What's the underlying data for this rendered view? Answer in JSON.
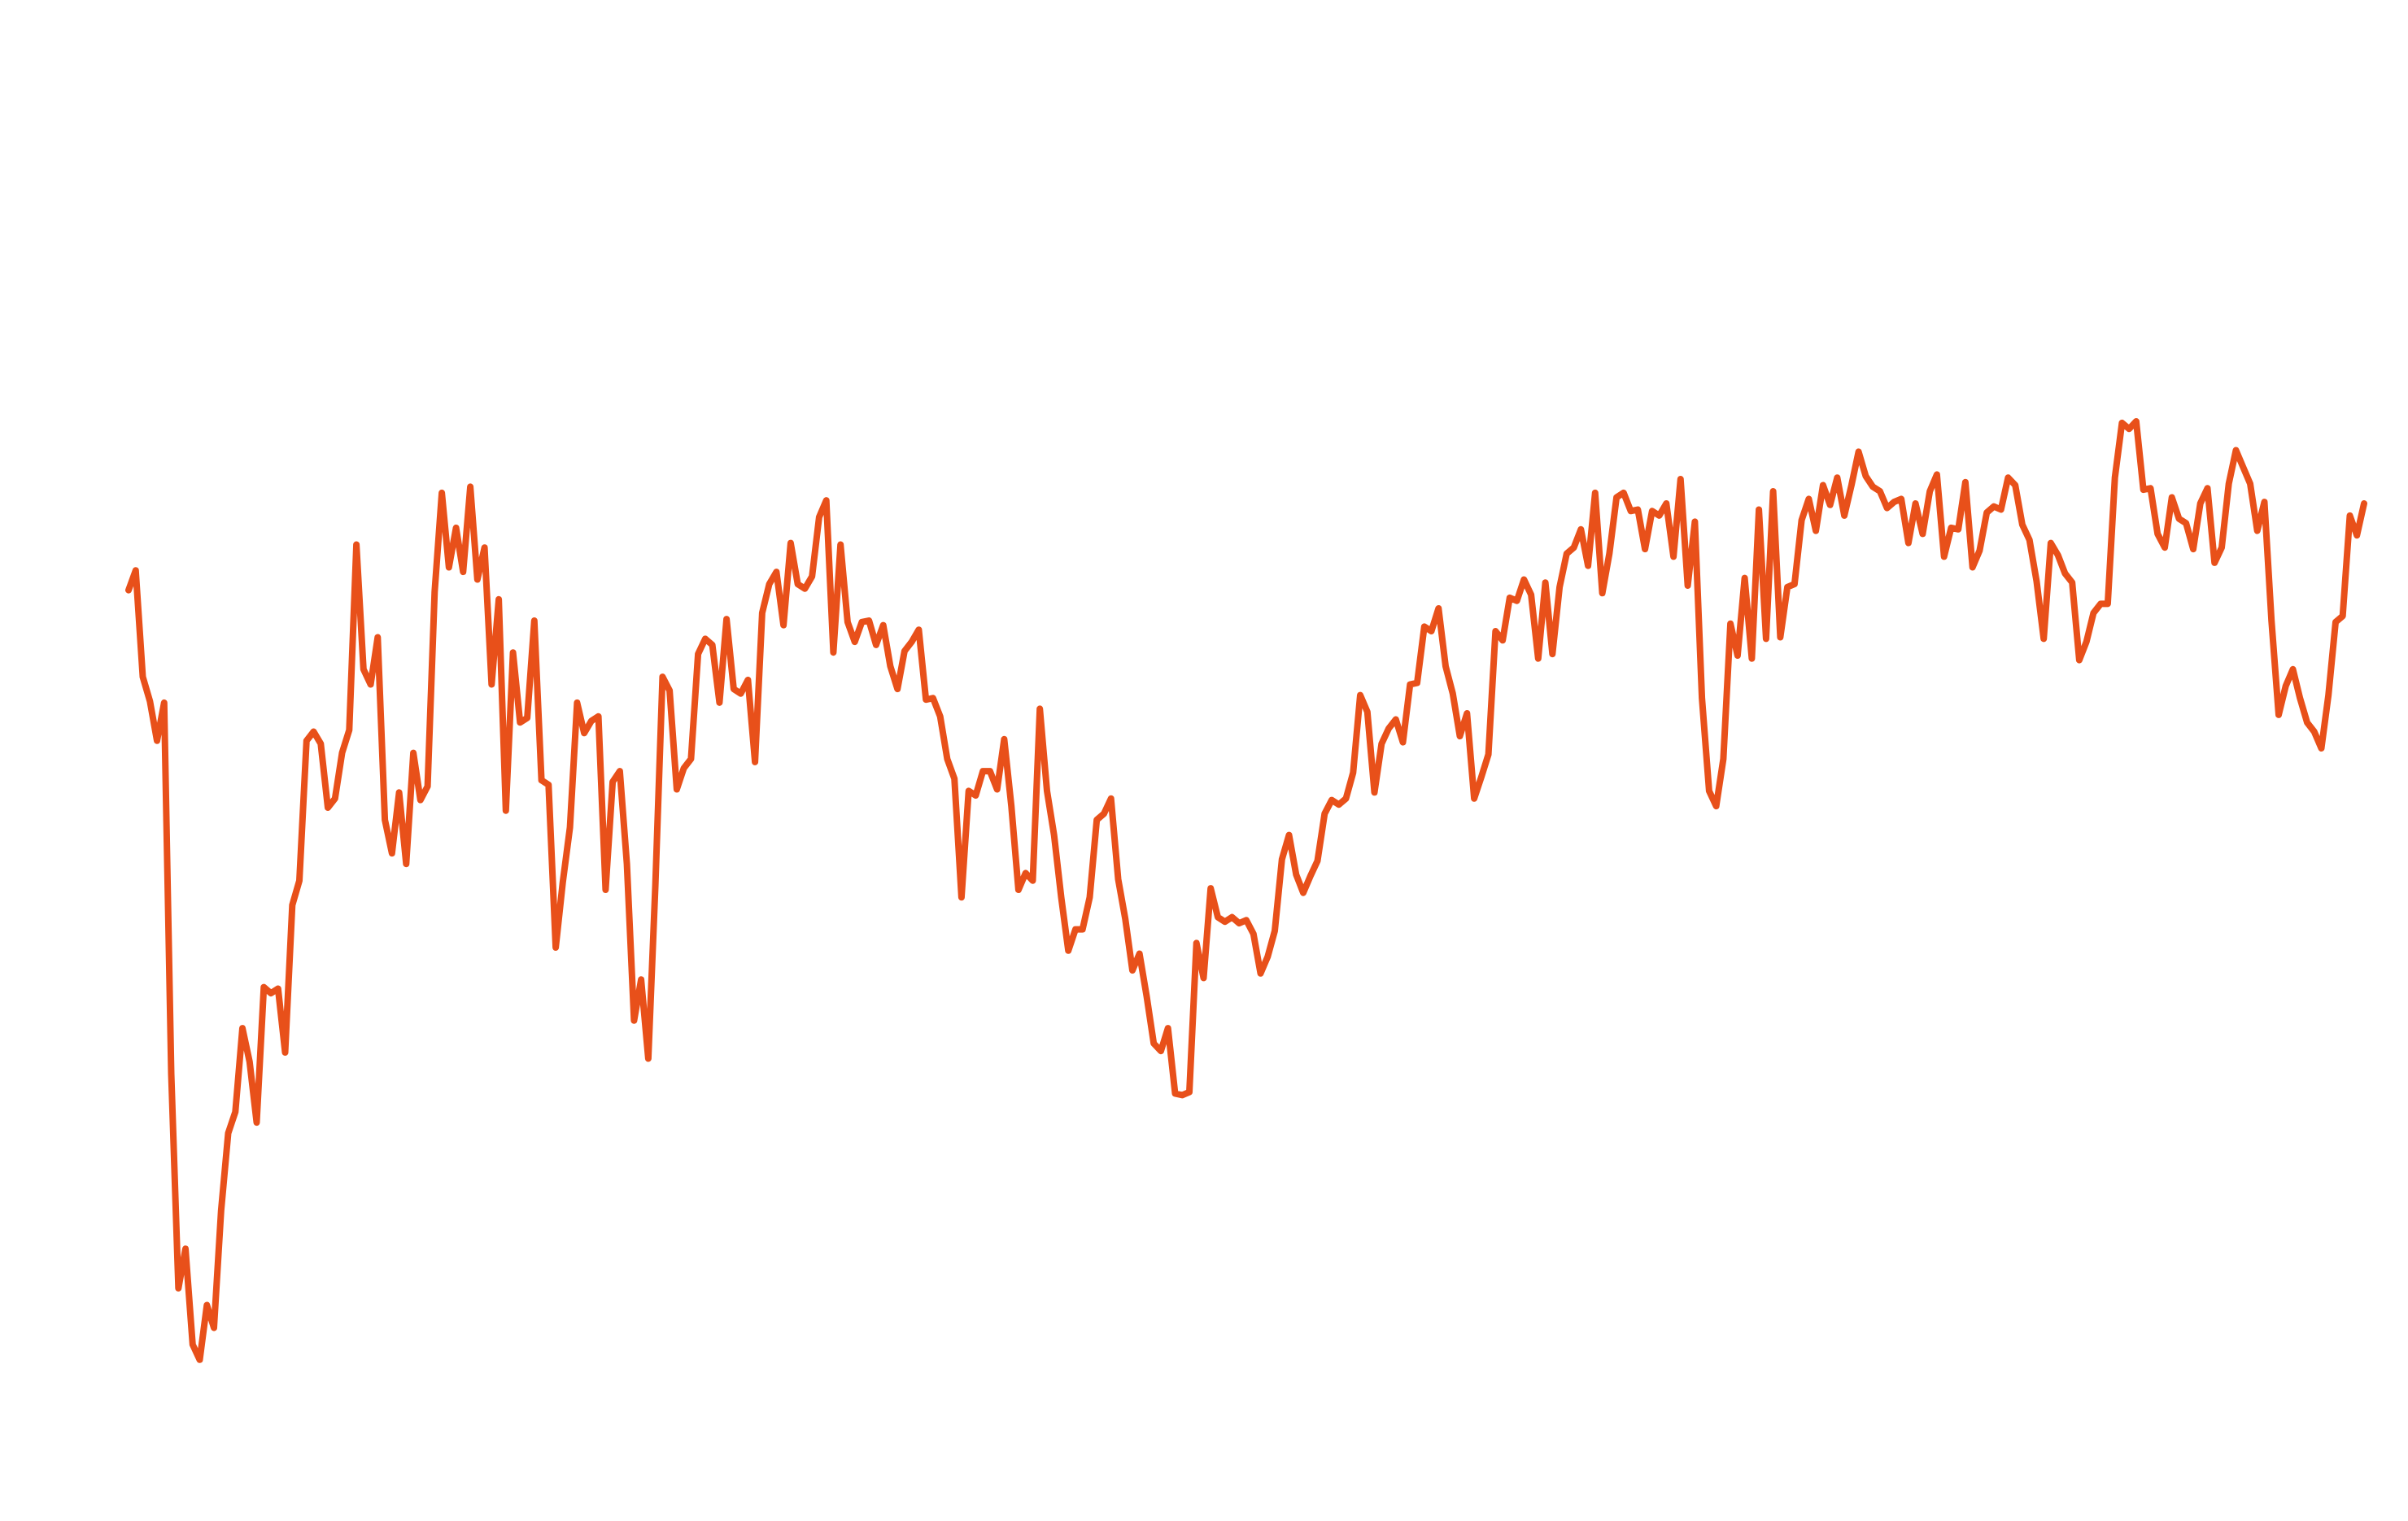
{
  "chart_data": {
    "type": "line",
    "title": "",
    "xlabel": "",
    "ylabel": "",
    "axes_visible": false,
    "grid": false,
    "legend": "none",
    "ylim": [
      0,
      1000
    ],
    "colors": {
      "line": "#E8501A",
      "background": "#FFFFFF"
    },
    "series": [
      {
        "values": [
          612,
          625,
          555,
          539,
          513,
          538,
          294,
          153,
          179,
          116,
          106,
          142,
          127,
          204,
          255,
          269,
          324,
          302,
          262,
          351,
          347,
          350,
          308,
          405,
          421,
          513,
          519,
          511,
          469,
          475,
          505,
          520,
          642,
          560,
          550,
          581,
          461,
          439,
          479,
          432,
          505,
          474,
          483,
          611,
          676,
          627,
          653,
          624,
          680,
          619,
          640,
          550,
          606,
          467,
          571,
          525,
          528,
          592,
          487,
          484,
          377,
          420,
          456,
          538,
          518,
          526,
          529,
          415,
          486,
          493,
          432,
          329,
          356,
          304,
          418,
          555,
          546,
          481,
          495,
          501,
          570,
          580,
          576,
          538,
          593,
          547,
          544,
          553,
          499,
          597,
          616,
          624,
          589,
          643,
          616,
          613,
          621,
          660,
          671,
          571,
          642,
          591,
          578,
          591,
          592,
          576,
          589,
          562,
          547,
          572,
          578,
          586,
          540,
          541,
          529,
          501,
          488,
          410,
          480,
          477,
          493,
          493,
          481,
          514,
          470,
          415,
          426,
          421,
          534,
          480,
          451,
          410,
          375,
          389,
          389,
          410,
          461,
          465,
          475,
          422,
          396,
          362,
          373,
          345,
          314,
          309,
          324,
          281,
          280,
          282,
          380,
          357,
          416,
          397,
          394,
          397,
          393,
          395,
          386,
          360,
          371,
          388,
          435,
          451,
          425,
          413,
          424,
          434,
          465,
          474,
          471,
          475,
          492,
          543,
          532,
          479,
          511,
          521,
          527,
          512,
          550,
          551,
          588,
          585,
          600,
          562,
          544,
          516,
          531,
          475,
          489,
          504,
          585,
          579,
          607,
          605,
          619,
          609,
          567,
          617,
          570,
          614,
          636,
          640,
          652,
          628,
          676,
          610,
          636,
          673,
          676,
          664,
          665,
          639,
          664,
          661,
          669,
          634,
          685,
          615,
          657,
          541,
          480,
          470,
          501,
          590,
          569,
          620,
          567,
          665,
          580,
          677,
          581,
          614,
          616,
          658,
          672,
          651,
          681,
          668,
          686,
          661,
          681,
          703,
          687,
          680,
          677,
          666,
          670,
          672,
          643,
          669,
          649,
          677,
          688,
          634,
          653,
          652,
          683,
          627,
          638,
          663,
          667,
          665,
          686,
          681,
          655,
          645,
          618,
          580,
          643,
          635,
          623,
          617,
          566,
          578,
          597,
          603,
          603,
          686,
          722,
          718,
          723,
          678,
          679,
          649,
          640,
          673,
          659,
          656,
          639,
          669,
          679,
          630,
          640,
          682,
          704,
          693,
          682,
          651,
          670,
          592,
          530,
          549,
          560,
          541,
          525,
          519,
          508,
          543,
          591,
          595,
          661,
          648,
          669
        ]
      }
    ]
  }
}
